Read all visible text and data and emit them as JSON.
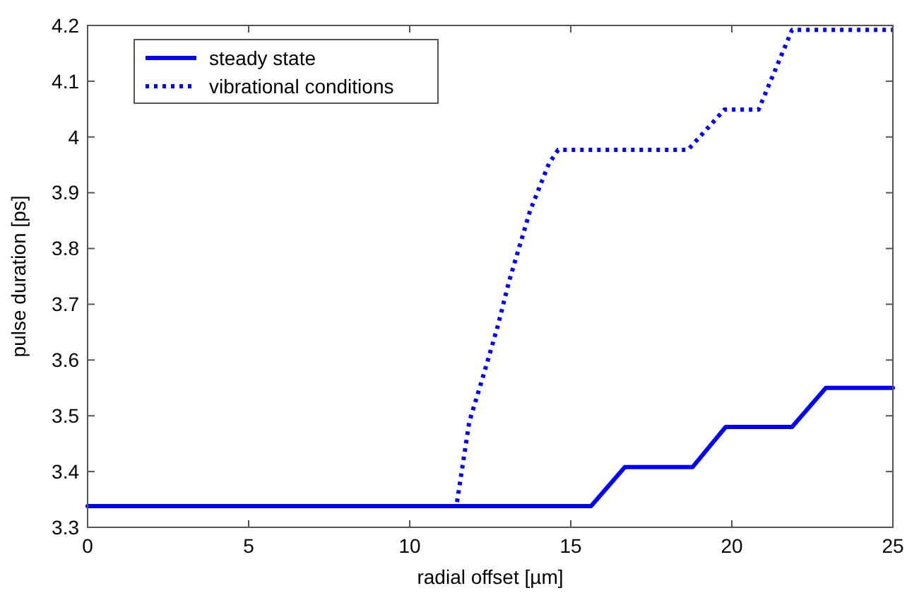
{
  "chart_data": {
    "type": "line",
    "xlabel": "radial offset [µm]",
    "ylabel": "pulse duration [ps]",
    "xlim": [
      0,
      25
    ],
    "xticks": [
      0,
      5,
      10,
      15,
      20,
      25
    ],
    "ylim": [
      3.3,
      4.2
    ],
    "yticks": [
      3.3,
      3.4,
      3.5,
      3.6,
      3.7,
      3.8,
      3.9,
      4,
      4.1,
      4.2
    ],
    "grid": false,
    "legend": "top left",
    "series": [
      {
        "name": "steady state",
        "color": "#0000ff",
        "line_style": "solid",
        "x": [
          0,
          15.63,
          16.68,
          18.78,
          19.81,
          21.87,
          22.92,
          25
        ],
        "values": [
          3.338,
          3.338,
          3.408,
          3.408,
          3.48,
          3.48,
          3.55,
          3.55
        ]
      },
      {
        "name": "vibrational conditions",
        "color": "#0000ff",
        "line_style": "dotted",
        "x": [
          0,
          11.45,
          11.85,
          12.29,
          12.72,
          13.09,
          13.74,
          14.32,
          14.61,
          18.64,
          19.77,
          20.83,
          21.87,
          25
        ],
        "values": [
          3.338,
          3.338,
          3.489,
          3.573,
          3.658,
          3.742,
          3.868,
          3.952,
          3.977,
          3.977,
          4.049,
          4.049,
          4.192,
          4.192
        ]
      }
    ]
  }
}
